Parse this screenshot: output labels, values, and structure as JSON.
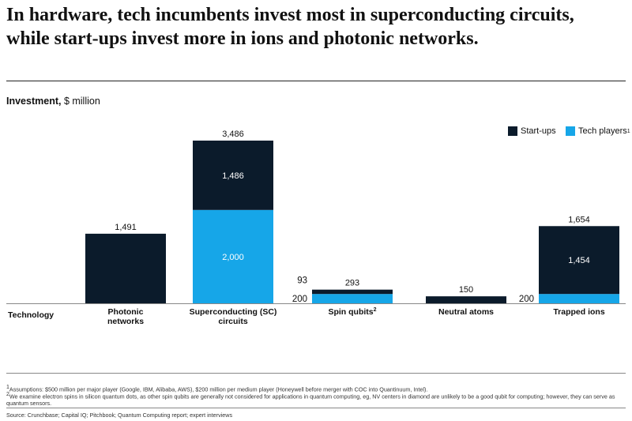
{
  "header": {
    "title": "In hardware, tech incumbents invest most in superconducting circuits, while start-ups invest more in ions and photonic networks.",
    "measure_bold": "Investment,",
    "measure_unit": " $ million"
  },
  "legend": {
    "startups": "Start-ups",
    "tech": "Tech players",
    "tech_sup": "1"
  },
  "axis": {
    "row_label": "Technology"
  },
  "colors": {
    "startups": "#0b1b2b",
    "tech": "#16a6e8"
  },
  "chart_data": {
    "type": "bar",
    "stacked": true,
    "title": "",
    "ylabel": "Investment, $ million",
    "xlabel": "Technology",
    "ylim": [
      0,
      3486
    ],
    "grid": false,
    "legend_position": "top-right",
    "categories": [
      "Photonic networks",
      "Superconducting (SC) circuits",
      "Spin qubits",
      "Neutral atoms",
      "Trapped ions"
    ],
    "category_superscripts": [
      "",
      "",
      "2",
      "",
      ""
    ],
    "series": [
      {
        "name": "Tech players",
        "values": [
          0,
          2000,
          200,
          0,
          200
        ]
      },
      {
        "name": "Start-ups",
        "values": [
          1491,
          1486,
          93,
          150,
          1454
        ]
      }
    ],
    "totals": [
      1491,
      3486,
      293,
      150,
      1654
    ],
    "total_labels": [
      "1,491",
      "3,486",
      "293",
      "150",
      "1,654"
    ],
    "inner_labels": {
      "Tech players": [
        "",
        "2,000",
        "",
        "",
        ""
      ],
      "Start-ups": [
        "",
        "1,486",
        "",
        "",
        "1,454"
      ]
    },
    "side_labels": {
      "Tech players": [
        "",
        "",
        "200",
        "",
        "200"
      ],
      "Start-ups": [
        "",
        "",
        "93",
        "",
        ""
      ]
    }
  },
  "footnotes": {
    "n1": "Assumptions: $500 million per major player (Google, IBM, Alibaba, AWS), $200 million per medium player (Honeywell before merger with COC into Quantinuum, Intel).",
    "n2": "We examine electron spins in silicon quantum dots, as other spin qubits are generally not considered for applications in quantum computing, eg, NV centers in diamond are unlikely to be a good qubit for computing; however, they can serve as quantum sensors.",
    "source": "Source: Crunchbase; Capital IQ; Pitchbook; Quantum Computing report; expert interviews"
  }
}
